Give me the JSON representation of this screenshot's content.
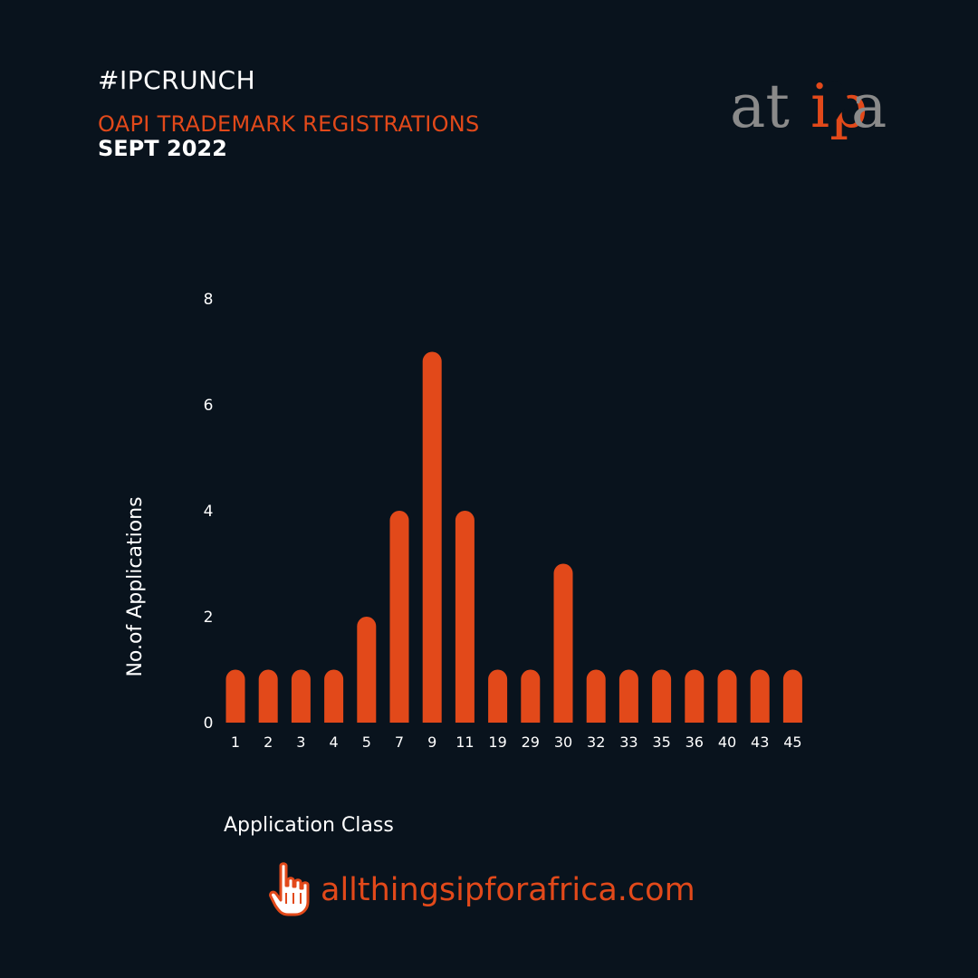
{
  "header": {
    "hashtag": "#IPCRUNCH",
    "title": "OAPI TRADEMARK REGISTRATIONS",
    "subtitle": "SEPT 2022"
  },
  "logo": {
    "text_left": "at",
    "text_accent": "ip",
    "text_right": "a"
  },
  "footer": {
    "link_text": "allthingsipforafrica.com",
    "icon": "pointing-hand-icon"
  },
  "colors": {
    "background": "#09131d",
    "accent": "#e2491a",
    "text": "#ffffff",
    "logo_gray": "#8a8a8a"
  },
  "chart_data": {
    "type": "bar",
    "categories": [
      "1",
      "2",
      "3",
      "4",
      "5",
      "7",
      "9",
      "11",
      "19",
      "29",
      "30",
      "32",
      "33",
      "35",
      "36",
      "40",
      "43",
      "45"
    ],
    "values": [
      1,
      1,
      1,
      1,
      2,
      4,
      7,
      4,
      1,
      1,
      3,
      1,
      1,
      1,
      1,
      1,
      1,
      1
    ],
    "xlabel": "Application Class",
    "ylabel": "No.of Applications",
    "ylim": [
      0,
      8
    ],
    "yticks": [
      0,
      2,
      4,
      6,
      8
    ],
    "grid": false,
    "legend": "none"
  }
}
